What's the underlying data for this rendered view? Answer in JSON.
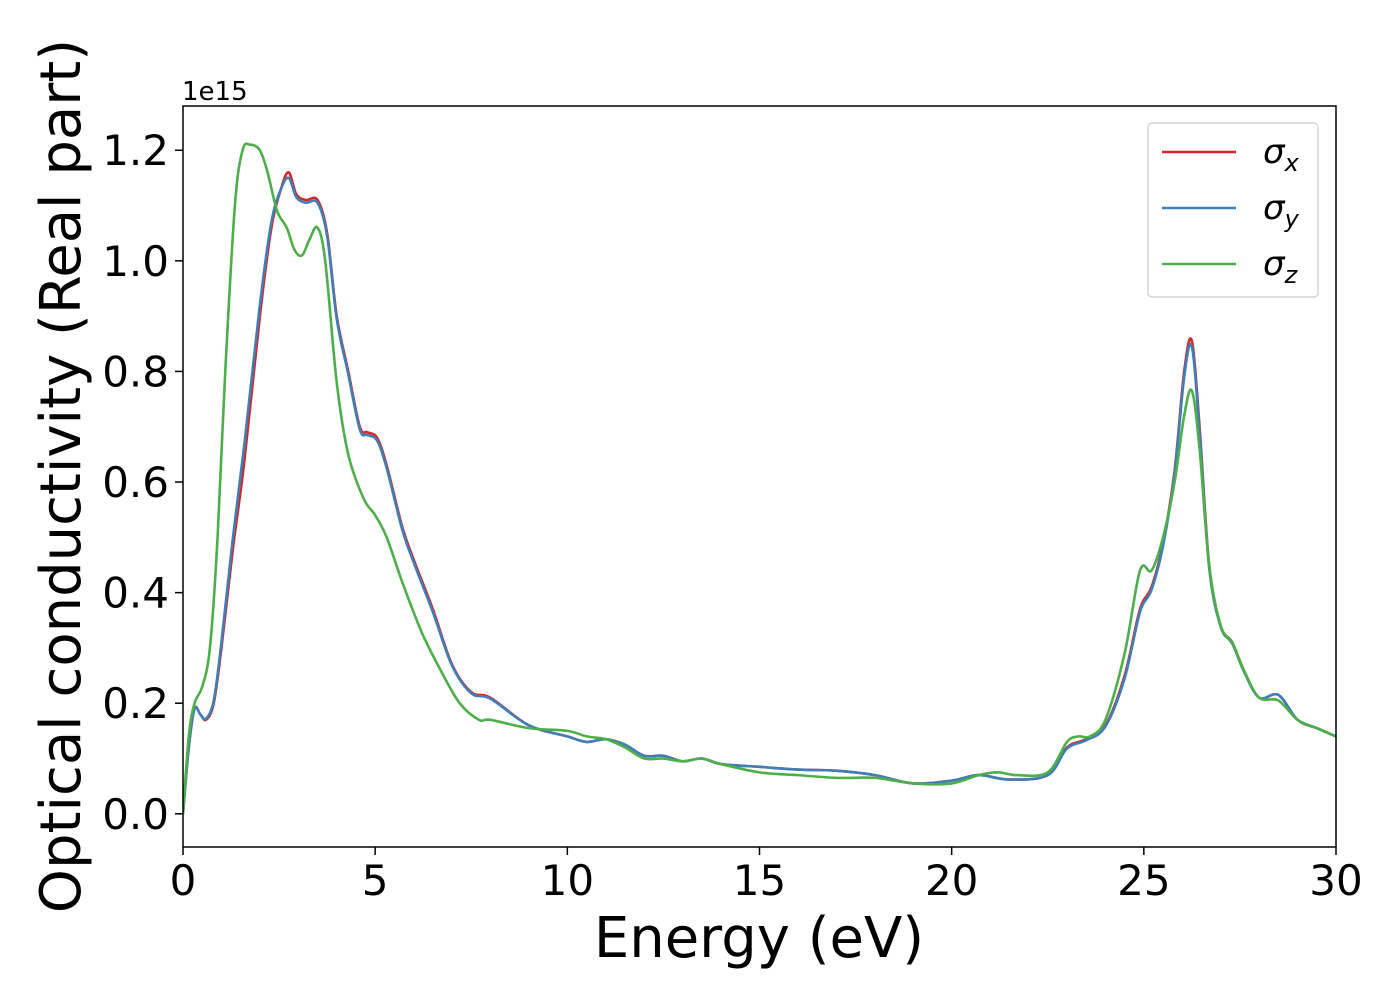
{
  "chart_data": {
    "type": "line",
    "title": "",
    "xlabel": "Energy (eV)",
    "ylabel": "Optical conductivity (Real part)",
    "y_offset_label": "1e15",
    "y_scale_factor": 1000000000000000.0,
    "xlim": [
      0,
      30
    ],
    "ylim": [
      -0.06,
      1.28
    ],
    "xticks": [
      0,
      5,
      10,
      15,
      20,
      25,
      30
    ],
    "xtick_labels": [
      "0",
      "5",
      "10",
      "15",
      "20",
      "25",
      "30"
    ],
    "yticks": [
      0.0,
      0.2,
      0.4,
      0.6,
      0.8,
      1.0,
      1.2
    ],
    "ytick_labels": [
      "0.0",
      "0.2",
      "0.4",
      "0.6",
      "0.8",
      "1.0",
      "1.2"
    ],
    "grid": false,
    "legend": "top-right",
    "series": [
      {
        "name": "σ",
        "subscript": "x",
        "color": "#d62728",
        "x": [
          0,
          0.15,
          0.3,
          0.45,
          0.6,
          0.8,
          1.0,
          1.3,
          1.6,
          2.0,
          2.3,
          2.55,
          2.75,
          2.95,
          3.2,
          3.5,
          3.75,
          4.0,
          4.3,
          4.6,
          4.8,
          5.05,
          5.3,
          5.7,
          6.0,
          6.5,
          7.0,
          7.5,
          8.0,
          9.0,
          10.0,
          10.5,
          11.0,
          11.5,
          12.0,
          12.5,
          13.0,
          13.5,
          14.0,
          15.0,
          16.0,
          17.0,
          18.0,
          19.0,
          20.0,
          20.7,
          21.5,
          22.5,
          23.0,
          23.5,
          24.0,
          24.5,
          24.9,
          25.2,
          25.5,
          25.8,
          26.05,
          26.25,
          26.45,
          26.7,
          27.0,
          27.3,
          27.6,
          28.0,
          28.5,
          29.0,
          29.5,
          30.0
        ],
        "values": [
          0.0,
          0.12,
          0.19,
          0.18,
          0.17,
          0.2,
          0.3,
          0.48,
          0.64,
          0.9,
          1.06,
          1.13,
          1.16,
          1.12,
          1.11,
          1.11,
          1.05,
          0.9,
          0.8,
          0.7,
          0.69,
          0.68,
          0.63,
          0.52,
          0.46,
          0.37,
          0.27,
          0.22,
          0.21,
          0.16,
          0.14,
          0.13,
          0.135,
          0.125,
          0.105,
          0.105,
          0.095,
          0.1,
          0.09,
          0.085,
          0.08,
          0.078,
          0.07,
          0.055,
          0.06,
          0.07,
          0.062,
          0.07,
          0.12,
          0.135,
          0.16,
          0.25,
          0.37,
          0.41,
          0.49,
          0.62,
          0.8,
          0.855,
          0.7,
          0.45,
          0.34,
          0.31,
          0.26,
          0.21,
          0.215,
          0.17,
          0.155,
          0.14
        ]
      },
      {
        "name": "σ",
        "subscript": "y",
        "color": "#3f7fb8",
        "x": [
          0,
          0.15,
          0.3,
          0.45,
          0.6,
          0.8,
          1.0,
          1.3,
          1.6,
          2.0,
          2.3,
          2.55,
          2.75,
          2.95,
          3.2,
          3.5,
          3.75,
          4.0,
          4.3,
          4.6,
          4.8,
          5.05,
          5.3,
          5.7,
          6.0,
          6.5,
          7.0,
          7.5,
          8.0,
          9.0,
          10.0,
          10.5,
          11.0,
          11.5,
          12.0,
          12.5,
          13.0,
          13.5,
          14.0,
          15.0,
          16.0,
          17.0,
          18.0,
          19.0,
          20.0,
          20.7,
          21.5,
          22.5,
          23.0,
          23.5,
          24.0,
          24.5,
          24.9,
          25.2,
          25.5,
          25.8,
          26.05,
          26.25,
          26.45,
          26.7,
          27.0,
          27.3,
          27.6,
          28.0,
          28.5,
          29.0,
          29.5,
          30.0
        ],
        "values": [
          0.0,
          0.12,
          0.19,
          0.18,
          0.172,
          0.205,
          0.31,
          0.5,
          0.67,
          0.92,
          1.07,
          1.13,
          1.15,
          1.115,
          1.105,
          1.105,
          1.045,
          0.895,
          0.795,
          0.695,
          0.685,
          0.675,
          0.625,
          0.515,
          0.455,
          0.365,
          0.268,
          0.218,
          0.208,
          0.16,
          0.14,
          0.13,
          0.135,
          0.125,
          0.105,
          0.105,
          0.095,
          0.1,
          0.09,
          0.085,
          0.08,
          0.078,
          0.07,
          0.055,
          0.06,
          0.07,
          0.062,
          0.07,
          0.118,
          0.133,
          0.158,
          0.245,
          0.365,
          0.405,
          0.485,
          0.615,
          0.79,
          0.845,
          0.69,
          0.445,
          0.338,
          0.308,
          0.258,
          0.21,
          0.215,
          0.17,
          0.155,
          0.14
        ]
      },
      {
        "name": "σ",
        "subscript": "z",
        "color": "#4daf4a",
        "x": [
          0,
          0.15,
          0.3,
          0.5,
          0.7,
          0.9,
          1.1,
          1.35,
          1.55,
          1.75,
          2.0,
          2.2,
          2.45,
          2.7,
          2.9,
          3.1,
          3.3,
          3.5,
          3.7,
          4.0,
          4.3,
          4.7,
          5.0,
          5.3,
          5.7,
          6.2,
          6.7,
          7.2,
          7.7,
          8.0,
          9.0,
          10.0,
          10.5,
          11.0,
          11.5,
          12.0,
          12.5,
          13.0,
          13.5,
          14.0,
          15.0,
          16.0,
          17.0,
          18.0,
          19.0,
          20.0,
          20.7,
          21.2,
          21.7,
          22.5,
          23.0,
          23.3,
          23.6,
          24.0,
          24.5,
          24.9,
          25.2,
          25.5,
          25.8,
          26.05,
          26.25,
          26.45,
          26.7,
          27.0,
          27.3,
          27.6,
          28.0,
          28.5,
          29.0,
          29.5,
          30.0
        ],
        "values": [
          0.0,
          0.14,
          0.2,
          0.23,
          0.3,
          0.5,
          0.8,
          1.1,
          1.2,
          1.21,
          1.2,
          1.16,
          1.09,
          1.06,
          1.02,
          1.01,
          1.04,
          1.06,
          1.0,
          0.78,
          0.65,
          0.57,
          0.54,
          0.5,
          0.42,
          0.33,
          0.26,
          0.2,
          0.17,
          0.17,
          0.155,
          0.15,
          0.14,
          0.135,
          0.12,
          0.1,
          0.1,
          0.095,
          0.1,
          0.09,
          0.075,
          0.07,
          0.065,
          0.065,
          0.055,
          0.055,
          0.07,
          0.075,
          0.07,
          0.075,
          0.13,
          0.14,
          0.14,
          0.17,
          0.29,
          0.44,
          0.44,
          0.5,
          0.6,
          0.72,
          0.765,
          0.66,
          0.45,
          0.34,
          0.31,
          0.26,
          0.21,
          0.205,
          0.17,
          0.155,
          0.14
        ]
      }
    ]
  }
}
